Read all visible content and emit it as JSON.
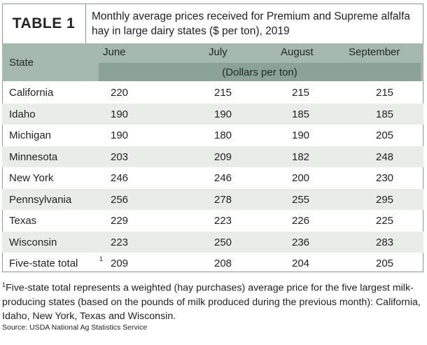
{
  "title": {
    "tag": "TABLE 1",
    "text": "Monthly average prices received for Premium and Supreme alfalfa hay in large dairy states ($ per ton), 2019"
  },
  "header": {
    "state": "State",
    "months": [
      "June",
      "July",
      "August",
      "September"
    ],
    "units": "(Dollars per ton)"
  },
  "rows": [
    {
      "state": "California",
      "values": [
        "220",
        "215",
        "215",
        "215"
      ]
    },
    {
      "state": "Idaho",
      "values": [
        "190",
        "190",
        "185",
        "185"
      ]
    },
    {
      "state": "Michigan",
      "values": [
        "190",
        "180",
        "190",
        "205"
      ]
    },
    {
      "state": "Minnesota",
      "values": [
        "203",
        "209",
        "182",
        "248"
      ]
    },
    {
      "state": "New York",
      "values": [
        "246",
        "246",
        "200",
        "230"
      ]
    },
    {
      "state": "Pennsylvania",
      "values": [
        "256",
        "278",
        "255",
        "295"
      ]
    },
    {
      "state": "Texas",
      "values": [
        "229",
        "223",
        "226",
        "225"
      ]
    },
    {
      "state": "Wisconsin",
      "values": [
        "223",
        "250",
        "236",
        "283"
      ]
    },
    {
      "state": "Five-state total",
      "state_sup": "1",
      "values": [
        "209",
        "208",
        "204",
        "205"
      ]
    }
  ],
  "footnote": {
    "marker": "1",
    "text": "Five-state total represents a weighted (hay purchases) average price for the five largest milk-producing states (based on the pounds of milk produced during the previous month): California, Idaho, New York, Texas and Wisconsin."
  },
  "source": "Source: USDA National Ag Statistics Service",
  "colors": {
    "header_bg": "#a5b8ac",
    "units_bg": "#8aa395",
    "alt_row_bg": "#e9ede8"
  }
}
